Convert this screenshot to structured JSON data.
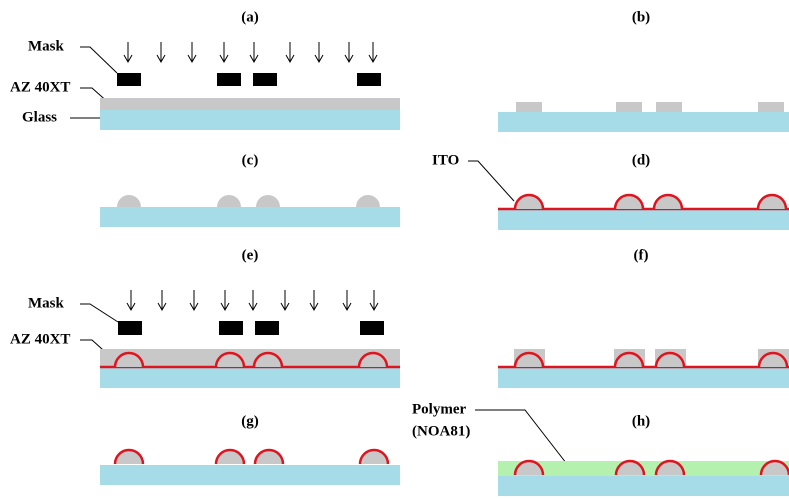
{
  "panels": [
    "(a)",
    "(b)",
    "(c)",
    "(d)",
    "(e)",
    "(f)",
    "(g)",
    "(h)"
  ],
  "labels": {
    "mask_a": "Mask",
    "az_a": "AZ 40XT",
    "glass": "Glass",
    "ito": "ITO",
    "mask_e": "Mask",
    "az_e": "AZ 40XT",
    "polymer": "Polymer",
    "noa": "(NOA81)"
  }
}
